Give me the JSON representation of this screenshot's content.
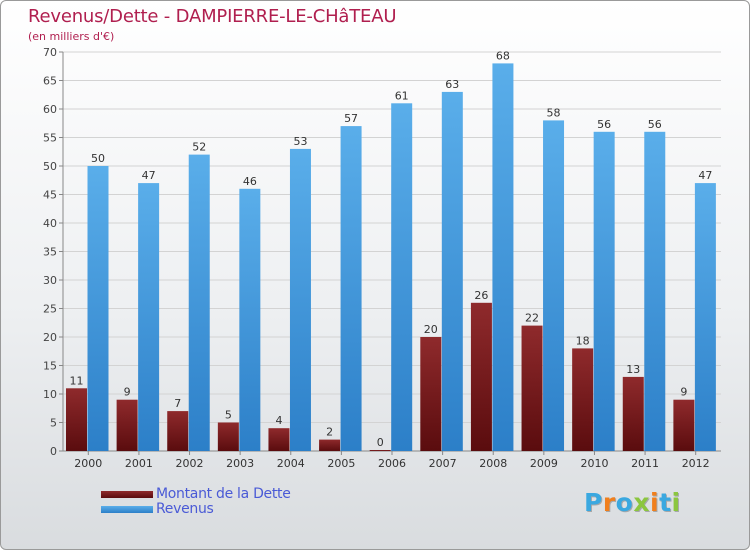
{
  "title": "Revenus/Dette - DAMPIERRE-LE-CHâTEAU",
  "subtitle": "(en milliers d'€)",
  "logo": {
    "text": "Proxiti",
    "colors": [
      "#3aa8e0",
      "#f07f1d",
      "#3aa8e0",
      "#8cc63f",
      "#f07f1d",
      "#3aa8e0",
      "#8cc63f"
    ]
  },
  "chart_data": {
    "type": "bar",
    "categories": [
      "2000",
      "2001",
      "2002",
      "2003",
      "2004",
      "2005",
      "2006",
      "2007",
      "2008",
      "2009",
      "2010",
      "2011",
      "2012"
    ],
    "series": [
      {
        "name": "Montant de la Dette",
        "color": "#7a1518",
        "values": [
          11,
          9,
          7,
          5,
          4,
          2,
          0,
          20,
          26,
          22,
          18,
          13,
          9
        ]
      },
      {
        "name": "Revenus",
        "color": "#4ea3e5",
        "values": [
          50,
          47,
          52,
          46,
          53,
          57,
          61,
          63,
          68,
          58,
          56,
          56,
          47
        ]
      }
    ],
    "ylim": [
      0,
      70
    ],
    "yticks": [
      0,
      5,
      10,
      15,
      20,
      25,
      30,
      35,
      40,
      45,
      50,
      55,
      60,
      65,
      70
    ],
    "grid": true,
    "legend": "bottom-left"
  }
}
